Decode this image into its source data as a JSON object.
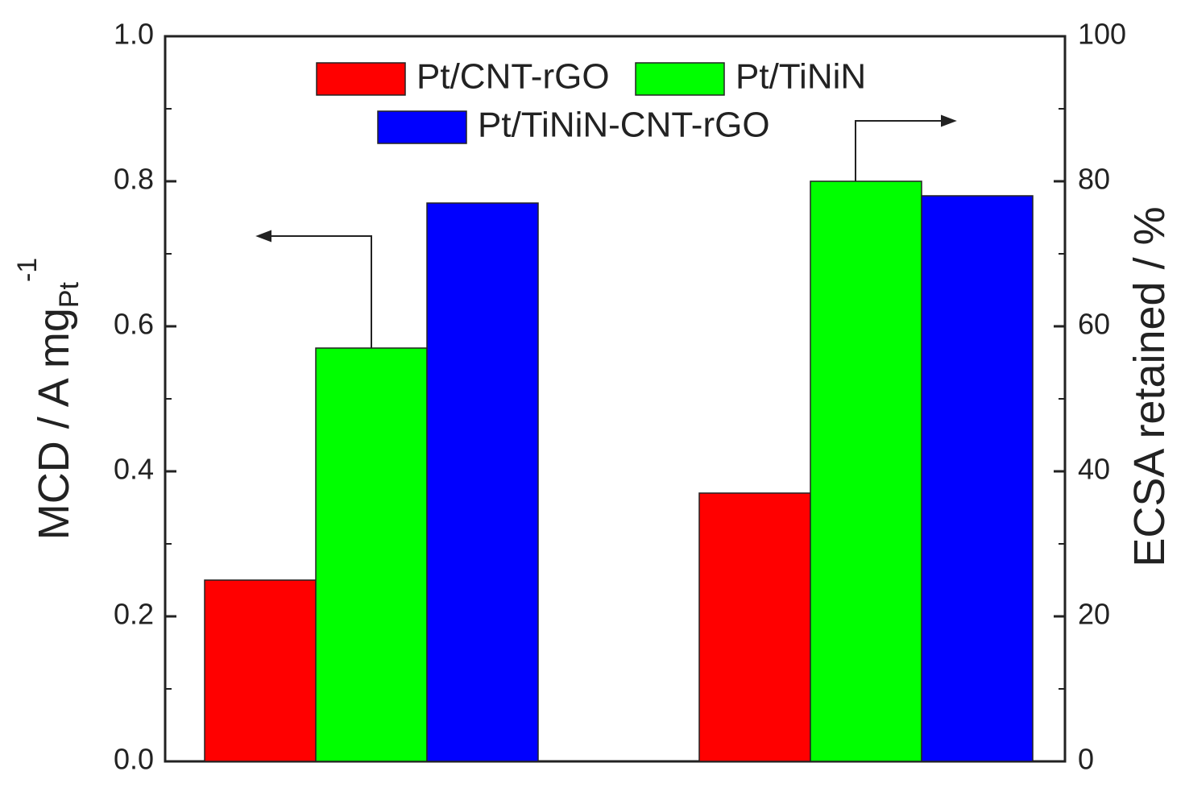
{
  "chart_data": [
    {
      "type": "bar",
      "y_label": "MCD / A mg",
      "y_label_sub": "Pt",
      "y_label_sup": "-1",
      "ylim": [
        0,
        1
      ],
      "yticks": [
        {
          "value": 0,
          "label": "0.0"
        },
        0.2,
        0.4,
        0.6,
        0.8,
        {
          "value": 1,
          "label": "1.0"
        }
      ],
      "series": [
        {
          "name": "Pt/CNT-rGO",
          "color": "#ff0000",
          "values": [
            0.25
          ]
        },
        {
          "name": "Pt/TiNiN",
          "color": "#00ff00",
          "values": [
            0.57
          ]
        },
        {
          "name": "Pt/TiNiN-CNT-rGO",
          "color": "#0000ff",
          "values": [
            0.77
          ]
        }
      ]
    },
    {
      "type": "bar",
      "y2_label": "ECSA retained / %",
      "y2lim": [
        0,
        100
      ],
      "y2ticks": [
        0,
        20,
        40,
        60,
        80,
        100
      ],
      "series": [
        {
          "color": "#ff0000",
          "values": [
            37
          ],
          "axis": "y2"
        },
        {
          "color": "#00ff00",
          "values": [
            80
          ],
          "axis": "y2"
        },
        {
          "color": "#0000ff",
          "values": [
            78
          ],
          "axis": "y2"
        }
      ]
    }
  ]
}
